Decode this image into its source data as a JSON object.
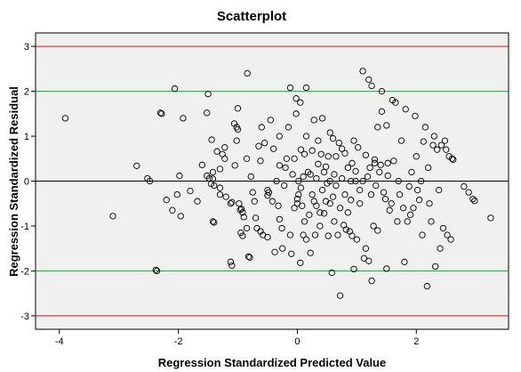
{
  "chart_data": {
    "type": "scatter",
    "title": "Scatterplot",
    "xlabel": "Regression Standardized Predicted Value",
    "ylabel": "Regression Standardized Residual",
    "xlim": [
      -4.4,
      3.55
    ],
    "ylim": [
      -3.3,
      3.3
    ],
    "xticks": [
      -4,
      -2,
      0,
      2
    ],
    "yticks": [
      -3,
      -2,
      -1,
      0,
      1,
      2,
      3
    ],
    "grid": false,
    "legend": "none",
    "reference_lines": [
      {
        "y": 3,
        "color": "#b02020"
      },
      {
        "y": 2,
        "color": "#2e9a48"
      },
      {
        "y": 0,
        "color": "#000000"
      },
      {
        "y": -2,
        "color": "#2e9a48"
      },
      {
        "y": -3,
        "color": "#b02020"
      }
    ],
    "colors": {
      "plot_bg": "#f0f0f0",
      "marker": "#000000"
    },
    "points": [
      [
        -3.9,
        1.4
      ],
      [
        -3.1,
        -0.78
      ],
      [
        -2.7,
        0.34
      ],
      [
        -2.52,
        0.06
      ],
      [
        -2.48,
        0.0
      ],
      [
        -2.38,
        -1.98
      ],
      [
        -2.36,
        -2.0
      ],
      [
        -2.3,
        1.52
      ],
      [
        -2.28,
        1.5
      ],
      [
        -2.2,
        -0.42
      ],
      [
        -2.1,
        -0.65
      ],
      [
        -2.06,
        2.06
      ],
      [
        -2.02,
        -0.3
      ],
      [
        -1.98,
        0.12
      ],
      [
        -1.96,
        -0.78
      ],
      [
        -1.92,
        1.4
      ],
      [
        -1.8,
        -0.22
      ],
      [
        -1.68,
        -0.45
      ],
      [
        -1.6,
        0.36
      ],
      [
        -1.5,
        1.94
      ],
      [
        -1.52,
        1.52
      ],
      [
        -1.52,
        0.12
      ],
      [
        -1.48,
        0.06
      ],
      [
        -1.45,
        -0.06
      ],
      [
        -1.42,
        0.05
      ],
      [
        -1.42,
        0.2
      ],
      [
        -1.4,
        -0.1
      ],
      [
        -1.42,
        -0.9
      ],
      [
        -1.4,
        -0.92
      ],
      [
        -1.44,
        0.92
      ],
      [
        -1.35,
        0.66
      ],
      [
        -1.3,
        -0.3
      ],
      [
        -1.3,
        -0.15
      ],
      [
        -1.3,
        0.27
      ],
      [
        -1.26,
        0.6
      ],
      [
        -1.22,
        0.5
      ],
      [
        -1.22,
        0.75
      ],
      [
        -1.2,
        -0.35
      ],
      [
        -1.12,
        -0.5
      ],
      [
        -1.1,
        -0.47
      ],
      [
        -1.12,
        -1.8
      ],
      [
        -1.1,
        -1.88
      ],
      [
        -1.06,
        1.28
      ],
      [
        -1.05,
        0.35
      ],
      [
        -1.02,
        0.9
      ],
      [
        -1.02,
        1.2
      ],
      [
        -1.0,
        1.15
      ],
      [
        -1.0,
        1.62
      ],
      [
        -0.98,
        -0.5
      ],
      [
        -0.96,
        -0.64
      ],
      [
        -0.94,
        -0.62
      ],
      [
        -0.92,
        -0.7
      ],
      [
        -0.95,
        -1.15
      ],
      [
        -0.92,
        -1.22
      ],
      [
        -0.9,
        -0.8
      ],
      [
        -0.85,
        -1.05
      ],
      [
        -0.85,
        0.5
      ],
      [
        -0.84,
        2.4
      ],
      [
        -0.82,
        -1.68
      ],
      [
        -0.8,
        -1.7
      ],
      [
        -0.78,
        0.1
      ],
      [
        -0.75,
        -0.25
      ],
      [
        -0.72,
        -0.45
      ],
      [
        -0.7,
        -0.82
      ],
      [
        -0.68,
        -1.05
      ],
      [
        -0.65,
        0.78
      ],
      [
        -0.62,
        -1.12
      ],
      [
        -0.62,
        0.45
      ],
      [
        -0.6,
        1.2
      ],
      [
        -0.58,
        -1.2
      ],
      [
        -0.55,
        0.85
      ],
      [
        -0.5,
        -1.25
      ],
      [
        -0.5,
        -0.2
      ],
      [
        -0.5,
        -0.32
      ],
      [
        -0.48,
        -0.25
      ],
      [
        -0.45,
        1.36
      ],
      [
        -0.42,
        -0.45
      ],
      [
        -0.4,
        0.72
      ],
      [
        -0.38,
        -1.58
      ],
      [
        -0.35,
        0.0
      ],
      [
        -0.32,
        -0.55
      ],
      [
        -0.3,
        1.0
      ],
      [
        -0.3,
        0.35
      ],
      [
        -0.3,
        -0.85
      ],
      [
        -0.26,
        -1.05
      ],
      [
        -0.25,
        -1.5
      ],
      [
        -0.22,
        -0.1
      ],
      [
        -0.2,
        0.3
      ],
      [
        -0.18,
        0.5
      ],
      [
        -0.15,
        1.2
      ],
      [
        -0.12,
        -1.2
      ],
      [
        -0.12,
        2.08
      ],
      [
        -0.1,
        -1.62
      ],
      [
        -0.08,
        0.15
      ],
      [
        -0.05,
        0.5
      ],
      [
        -0.05,
        -0.6
      ],
      [
        -0.02,
        1.5
      ],
      [
        -0.02,
        1.84
      ],
      [
        0.0,
        -0.4
      ],
      [
        0.0,
        -0.5
      ],
      [
        0.02,
        -0.3
      ],
      [
        0.02,
        0.0
      ],
      [
        0.05,
        -1.82
      ],
      [
        0.05,
        1.75
      ],
      [
        0.06,
        0.7
      ],
      [
        0.06,
        -0.15
      ],
      [
        0.08,
        -0.55
      ],
      [
        0.1,
        0.1
      ],
      [
        0.1,
        -1.2
      ],
      [
        0.12,
        0.6
      ],
      [
        0.12,
        -0.9
      ],
      [
        0.15,
        2.08
      ],
      [
        0.15,
        1.0
      ],
      [
        0.15,
        -1.3
      ],
      [
        0.18,
        0.2
      ],
      [
        0.2,
        -0.75
      ],
      [
        0.22,
        0.15
      ],
      [
        0.22,
        -1.6
      ],
      [
        0.25,
        -0.3
      ],
      [
        0.25,
        0.68
      ],
      [
        0.28,
        1.36
      ],
      [
        0.28,
        -0.45
      ],
      [
        0.3,
        -1.2
      ],
      [
        0.32,
        0.06
      ],
      [
        0.32,
        -0.55
      ],
      [
        0.35,
        0.38
      ],
      [
        0.35,
        0.9
      ],
      [
        0.38,
        -1.0
      ],
      [
        0.38,
        -0.7
      ],
      [
        0.4,
        0.6
      ],
      [
        0.42,
        -0.2
      ],
      [
        0.42,
        1.4
      ],
      [
        0.45,
        -0.72
      ],
      [
        0.45,
        0.2
      ],
      [
        0.48,
        0.32
      ],
      [
        0.48,
        -0.45
      ],
      [
        0.5,
        -0.05
      ],
      [
        0.52,
        0.55
      ],
      [
        0.52,
        -1.22
      ],
      [
        0.55,
        1.08
      ],
      [
        0.55,
        0.0
      ],
      [
        0.55,
        -0.5
      ],
      [
        0.58,
        -2.04
      ],
      [
        0.6,
        0.95
      ],
      [
        0.6,
        -0.35
      ],
      [
        0.62,
        0.15
      ],
      [
        0.62,
        -0.9
      ],
      [
        0.65,
        0.55
      ],
      [
        0.65,
        -0.1
      ],
      [
        0.68,
        -1.2
      ],
      [
        0.7,
        0.85
      ],
      [
        0.72,
        -0.6
      ],
      [
        0.72,
        -2.55
      ],
      [
        0.75,
        0.72
      ],
      [
        0.75,
        0.06
      ],
      [
        0.78,
        -0.98
      ],
      [
        0.8,
        0.62
      ],
      [
        0.8,
        -0.3
      ],
      [
        0.82,
        -1.08
      ],
      [
        0.85,
        0.3
      ],
      [
        0.85,
        -0.7
      ],
      [
        0.88,
        -1.12
      ],
      [
        0.9,
        0.0
      ],
      [
        0.9,
        -0.42
      ],
      [
        0.92,
        0.4
      ],
      [
        0.92,
        -1.22
      ],
      [
        0.95,
        -1.96
      ],
      [
        0.95,
        0.9
      ],
      [
        0.98,
        0.22
      ],
      [
        0.98,
        0.0
      ],
      [
        1.0,
        -1.3
      ],
      [
        1.02,
        0.75
      ],
      [
        1.05,
        -0.5
      ],
      [
        1.05,
        -0.2
      ],
      [
        1.1,
        0.0
      ],
      [
        1.1,
        2.45
      ],
      [
        1.12,
        -1.72
      ],
      [
        1.15,
        0.58
      ],
      [
        1.15,
        -1.5
      ],
      [
        1.18,
        0.1
      ],
      [
        1.2,
        -1.78
      ],
      [
        1.2,
        2.26
      ],
      [
        1.22,
        0.3
      ],
      [
        1.24,
        -0.3
      ],
      [
        1.25,
        2.12
      ],
      [
        1.25,
        -2.22
      ],
      [
        1.28,
        -1.0
      ],
      [
        1.3,
        0.4
      ],
      [
        1.3,
        0.48
      ],
      [
        1.32,
        -0.1
      ],
      [
        1.35,
        -1.1
      ],
      [
        1.35,
        1.2
      ],
      [
        1.38,
        0.2
      ],
      [
        1.4,
        0.36
      ],
      [
        1.42,
        2.0
      ],
      [
        1.42,
        1.55
      ],
      [
        1.45,
        -0.25
      ],
      [
        1.48,
        -0.4
      ],
      [
        1.5,
        1.24
      ],
      [
        1.5,
        -1.95
      ],
      [
        1.52,
        0.4
      ],
      [
        1.52,
        0.12
      ],
      [
        1.55,
        -0.65
      ],
      [
        1.58,
        -0.5
      ],
      [
        1.6,
        1.8
      ],
      [
        1.62,
        0.45
      ],
      [
        1.65,
        1.75
      ],
      [
        1.68,
        -0.9
      ],
      [
        1.7,
        0.0
      ],
      [
        1.72,
        -0.3
      ],
      [
        1.75,
        0.9
      ],
      [
        1.78,
        -0.6
      ],
      [
        1.8,
        -1.8
      ],
      [
        1.82,
        1.6
      ],
      [
        1.85,
        -0.9
      ],
      [
        1.88,
        -0.12
      ],
      [
        1.9,
        -0.75
      ],
      [
        1.92,
        0.2
      ],
      [
        1.95,
        -0.6
      ],
      [
        1.98,
        1.45
      ],
      [
        2.0,
        0.55
      ],
      [
        2.02,
        -0.2
      ],
      [
        2.05,
        -0.42
      ],
      [
        2.08,
        0.0
      ],
      [
        2.1,
        -1.2
      ],
      [
        2.12,
        0.88
      ],
      [
        2.15,
        1.2
      ],
      [
        2.18,
        -2.34
      ],
      [
        2.2,
        0.3
      ],
      [
        2.22,
        -0.5
      ],
      [
        2.25,
        -0.9
      ],
      [
        2.28,
        0.8
      ],
      [
        2.3,
        1.0
      ],
      [
        2.32,
        -1.9
      ],
      [
        2.35,
        0.7
      ],
      [
        2.38,
        -0.2
      ],
      [
        2.4,
        -1.5
      ],
      [
        2.42,
        0.8
      ],
      [
        2.45,
        -1.05
      ],
      [
        2.48,
        0.9
      ],
      [
        2.5,
        0.7
      ],
      [
        2.52,
        -1.2
      ],
      [
        2.55,
        0.55
      ],
      [
        2.58,
        -1.3
      ],
      [
        2.6,
        0.5
      ],
      [
        2.62,
        0.48
      ],
      [
        2.8,
        -0.12
      ],
      [
        2.88,
        -0.25
      ],
      [
        2.95,
        -0.4
      ],
      [
        2.98,
        -0.44
      ],
      [
        3.25,
        -0.82
      ]
    ]
  }
}
